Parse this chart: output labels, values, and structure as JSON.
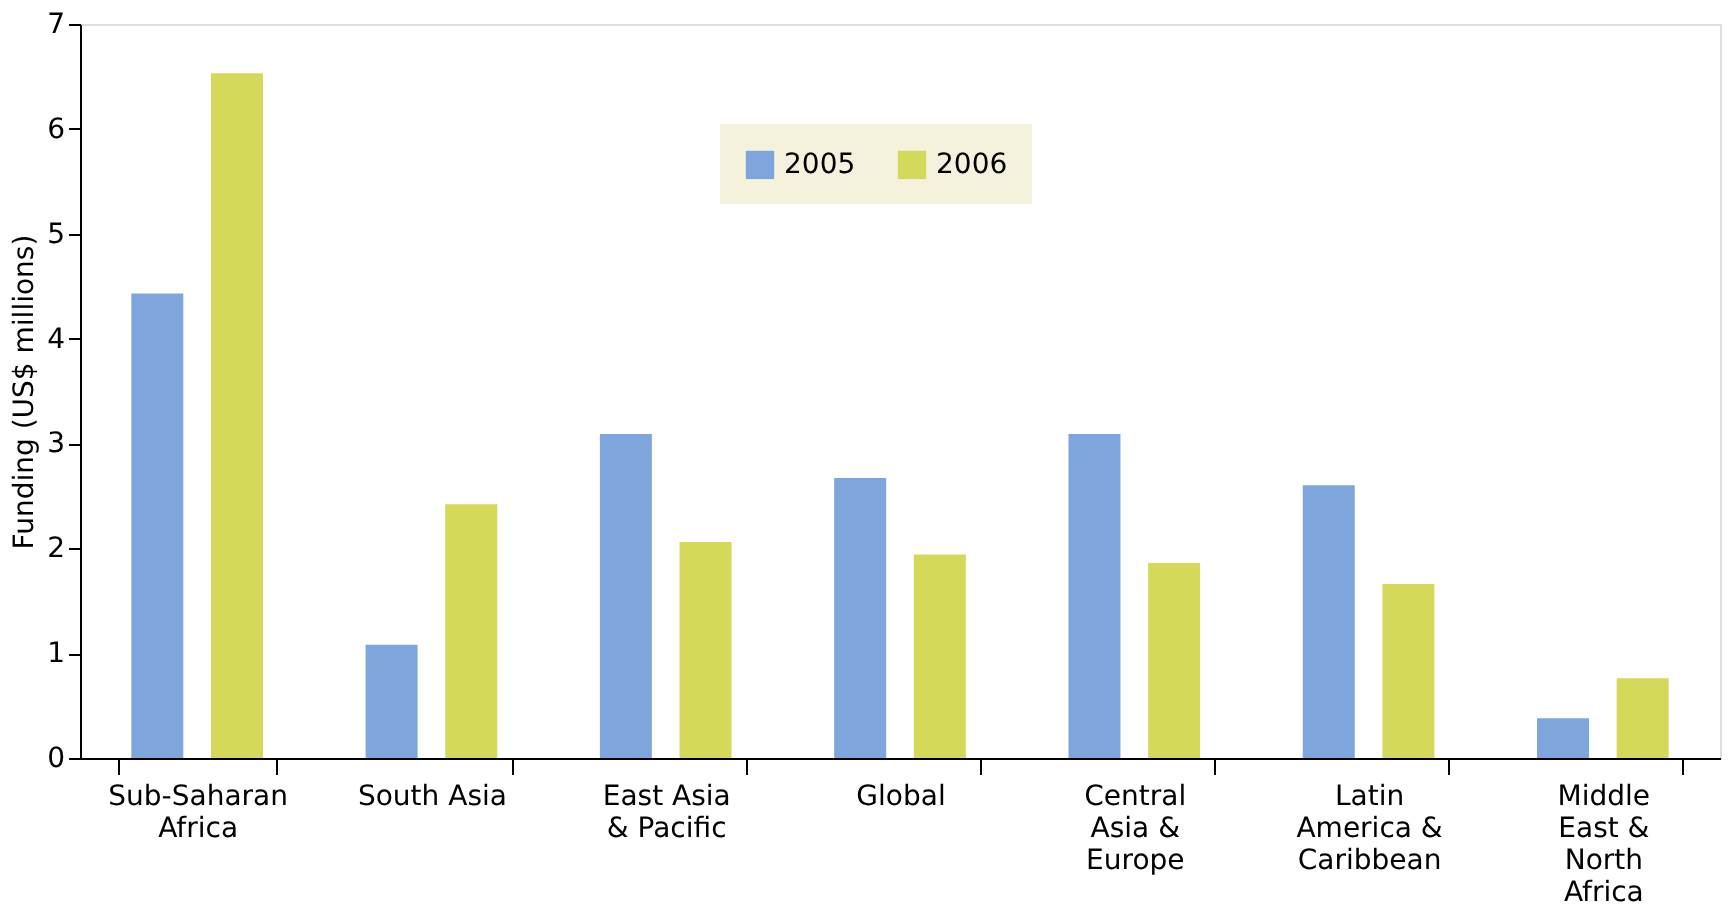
{
  "chart_data": {
    "type": "bar",
    "ylabel": "Funding (US$ millions)",
    "categories": [
      "Sub-Saharan Africa",
      "South Asia",
      "East Asia & Pacific",
      "Global",
      "Central Asia & Europe",
      "Latin America & Caribbean",
      "Middle East & North Africa"
    ],
    "series": [
      {
        "name": "2005",
        "color": "#7ea6dc",
        "values": [
          4.43,
          1.08,
          3.09,
          2.67,
          3.09,
          2.6,
          0.38
        ]
      },
      {
        "name": "2006",
        "color": "#d4d95a",
        "values": [
          6.53,
          2.42,
          2.06,
          1.94,
          1.86,
          1.66,
          0.76
        ]
      }
    ],
    "ylim": [
      0,
      7
    ],
    "yticks": [
      0,
      1,
      2,
      3,
      4,
      5,
      6,
      7
    ],
    "grid": false,
    "legend": "top"
  }
}
